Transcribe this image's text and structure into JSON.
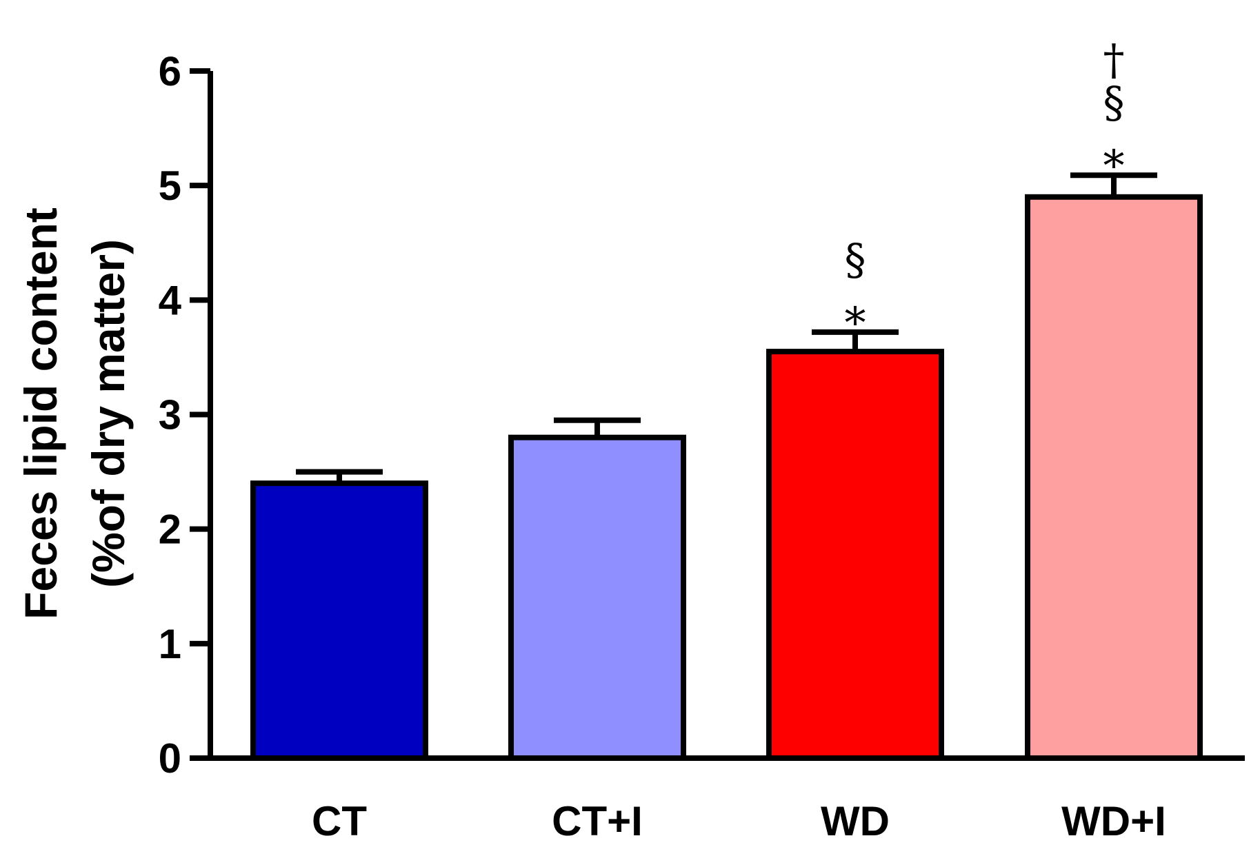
{
  "chart_data": {
    "type": "bar",
    "title": "",
    "xlabel": "",
    "ylabel": [
      "Feces lipid content",
      "(%of dry matter)"
    ],
    "ylim": [
      0,
      6
    ],
    "yticks": [
      "0",
      "1",
      "2",
      "3",
      "4",
      "5",
      "6"
    ],
    "grid": false,
    "categories": [
      "CT",
      "CT+I",
      "WD",
      "WD+I"
    ],
    "values": [
      2.4,
      2.8,
      3.55,
      4.9
    ],
    "errors": [
      0.1,
      0.15,
      0.17,
      0.19
    ],
    "colors": [
      "#0000C0",
      "#8F8FFF",
      "#FF0000",
      "#FFA0A0"
    ],
    "annotations": [
      [],
      [],
      [
        "*",
        "§"
      ],
      [
        "*",
        "§",
        "†"
      ]
    ]
  }
}
